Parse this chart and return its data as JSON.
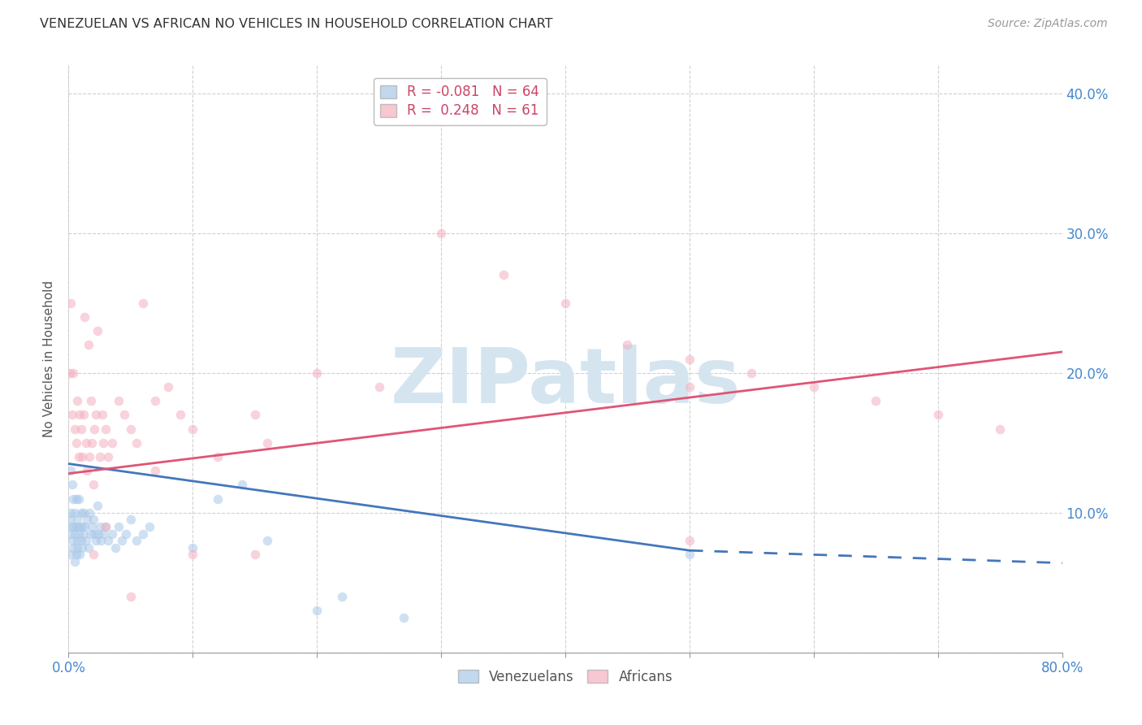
{
  "title": "VENEZUELAN VS AFRICAN NO VEHICLES IN HOUSEHOLD CORRELATION CHART",
  "source": "Source: ZipAtlas.com",
  "ylabel": "No Vehicles in Household",
  "watermark": "ZIPatlas",
  "blue_color": "#a8c8e8",
  "pink_color": "#f4b0c0",
  "blue_line_color": "#4477bb",
  "pink_line_color": "#e05575",
  "marker_size": 70,
  "marker_alpha": 0.55,
  "background_color": "#ffffff",
  "grid_color": "#cccccc",
  "title_color": "#333333",
  "axis_label_color": "#555555",
  "tick_color": "#4488cc",
  "watermark_color": "#d5e5f0",
  "xlim": [
    0.0,
    0.8
  ],
  "ylim": [
    0.0,
    0.42
  ],
  "xticks": [
    0.0,
    0.1,
    0.2,
    0.3,
    0.4,
    0.5,
    0.6,
    0.7,
    0.8
  ],
  "yticks": [
    0.0,
    0.1,
    0.2,
    0.3,
    0.4
  ],
  "ytick_labels_right": [
    "",
    "10.0%",
    "20.0%",
    "30.0%",
    "40.0%"
  ],
  "venezuelan_x": [
    0.001,
    0.001,
    0.002,
    0.002,
    0.002,
    0.003,
    0.003,
    0.003,
    0.004,
    0.004,
    0.004,
    0.005,
    0.005,
    0.005,
    0.006,
    0.006,
    0.006,
    0.007,
    0.007,
    0.007,
    0.008,
    0.008,
    0.009,
    0.009,
    0.01,
    0.01,
    0.011,
    0.011,
    0.012,
    0.012,
    0.013,
    0.014,
    0.015,
    0.016,
    0.017,
    0.018,
    0.019,
    0.02,
    0.021,
    0.022,
    0.023,
    0.024,
    0.025,
    0.026,
    0.028,
    0.03,
    0.032,
    0.035,
    0.038,
    0.04,
    0.043,
    0.046,
    0.05,
    0.055,
    0.06,
    0.065,
    0.1,
    0.12,
    0.14,
    0.16,
    0.2,
    0.22,
    0.27,
    0.5
  ],
  "venezuelan_y": [
    0.085,
    0.095,
    0.07,
    0.1,
    0.13,
    0.08,
    0.09,
    0.12,
    0.075,
    0.09,
    0.11,
    0.065,
    0.085,
    0.1,
    0.07,
    0.09,
    0.11,
    0.08,
    0.095,
    0.075,
    0.085,
    0.11,
    0.07,
    0.09,
    0.08,
    0.1,
    0.09,
    0.075,
    0.085,
    0.1,
    0.09,
    0.08,
    0.095,
    0.075,
    0.1,
    0.085,
    0.09,
    0.095,
    0.085,
    0.08,
    0.105,
    0.085,
    0.09,
    0.08,
    0.085,
    0.09,
    0.08,
    0.085,
    0.075,
    0.09,
    0.08,
    0.085,
    0.095,
    0.08,
    0.085,
    0.09,
    0.075,
    0.11,
    0.12,
    0.08,
    0.03,
    0.04,
    0.025,
    0.07
  ],
  "african_x": [
    0.001,
    0.002,
    0.003,
    0.004,
    0.005,
    0.006,
    0.007,
    0.008,
    0.009,
    0.01,
    0.011,
    0.012,
    0.013,
    0.014,
    0.015,
    0.016,
    0.017,
    0.018,
    0.019,
    0.02,
    0.021,
    0.022,
    0.023,
    0.025,
    0.027,
    0.028,
    0.03,
    0.032,
    0.035,
    0.04,
    0.045,
    0.05,
    0.055,
    0.06,
    0.07,
    0.08,
    0.09,
    0.1,
    0.12,
    0.15,
    0.16,
    0.2,
    0.25,
    0.3,
    0.35,
    0.4,
    0.45,
    0.5,
    0.55,
    0.6,
    0.65,
    0.7,
    0.75,
    0.5,
    0.02,
    0.03,
    0.05,
    0.07,
    0.1,
    0.15,
    0.5
  ],
  "african_y": [
    0.2,
    0.25,
    0.17,
    0.2,
    0.16,
    0.15,
    0.18,
    0.14,
    0.17,
    0.16,
    0.14,
    0.17,
    0.24,
    0.15,
    0.13,
    0.22,
    0.14,
    0.18,
    0.15,
    0.12,
    0.16,
    0.17,
    0.23,
    0.14,
    0.17,
    0.15,
    0.16,
    0.14,
    0.15,
    0.18,
    0.17,
    0.16,
    0.15,
    0.25,
    0.18,
    0.19,
    0.17,
    0.16,
    0.14,
    0.17,
    0.15,
    0.2,
    0.19,
    0.3,
    0.27,
    0.25,
    0.22,
    0.21,
    0.2,
    0.19,
    0.18,
    0.17,
    0.16,
    0.19,
    0.07,
    0.09,
    0.04,
    0.13,
    0.07,
    0.07,
    0.08
  ],
  "ven_line_x0": 0.0,
  "ven_line_x_solid_end": 0.5,
  "ven_line_x_dash_end": 0.8,
  "ven_line_y0": 0.135,
  "ven_line_y_solid_end": 0.073,
  "ven_line_y_dash_end": 0.064,
  "afr_line_x0": 0.0,
  "afr_line_x1": 0.8,
  "afr_line_y0": 0.128,
  "afr_line_y1": 0.215
}
